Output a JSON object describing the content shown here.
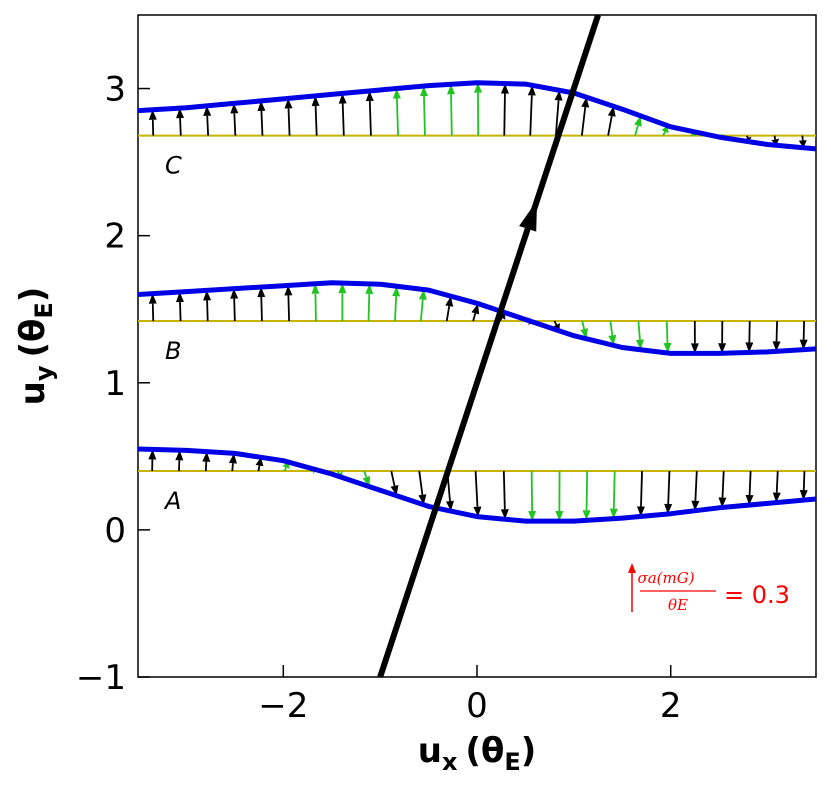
{
  "chart_data": {
    "type": "vector-field",
    "xlabel": {
      "main": "u",
      "sub": "x",
      "unit": "(θ",
      "unit_sub": "E",
      "close": ")"
    },
    "ylabel": {
      "main": "u",
      "sub": "y",
      "unit": "(θ",
      "unit_sub": "E",
      "close": ")"
    },
    "xlim": [
      -3.5,
      3.5
    ],
    "ylim": [
      -1,
      3.5
    ],
    "xticks": [
      {
        "value": -2,
        "label": "−2"
      },
      {
        "value": 0,
        "label": "0"
      },
      {
        "value": 2,
        "label": "2"
      }
    ],
    "yticks": [
      {
        "value": -1,
        "label": "−1"
      },
      {
        "value": 0,
        "label": "0"
      },
      {
        "value": 1,
        "label": "1"
      },
      {
        "value": 2,
        "label": "2"
      },
      {
        "value": 3,
        "label": "3"
      }
    ],
    "lens_trajectory": {
      "start": [
        -1.0,
        -1.0
      ],
      "end": [
        1.25,
        3.5
      ],
      "arrow_at": 0.72
    },
    "tracks": [
      {
        "label": "A",
        "baseline_y": 0.4,
        "curve": [
          [
            -3.5,
            0.55
          ],
          [
            -3.0,
            0.54
          ],
          [
            -2.5,
            0.52
          ],
          [
            -2.0,
            0.47
          ],
          [
            -1.5,
            0.38
          ],
          [
            -1.0,
            0.27
          ],
          [
            -0.5,
            0.16
          ],
          [
            0.0,
            0.09
          ],
          [
            0.5,
            0.06
          ],
          [
            1.0,
            0.06
          ],
          [
            1.5,
            0.08
          ],
          [
            2.0,
            0.11
          ],
          [
            2.5,
            0.15
          ],
          [
            3.0,
            0.18
          ],
          [
            3.5,
            0.21
          ]
        ]
      },
      {
        "label": "B",
        "baseline_y": 1.42,
        "curve": [
          [
            -3.5,
            1.6
          ],
          [
            -3.0,
            1.62
          ],
          [
            -2.5,
            1.64
          ],
          [
            -2.0,
            1.66
          ],
          [
            -1.5,
            1.68
          ],
          [
            -1.0,
            1.67
          ],
          [
            -0.5,
            1.63
          ],
          [
            0.0,
            1.54
          ],
          [
            0.5,
            1.43
          ],
          [
            1.0,
            1.32
          ],
          [
            1.5,
            1.24
          ],
          [
            2.0,
            1.2
          ],
          [
            2.5,
            1.2
          ],
          [
            3.0,
            1.21
          ],
          [
            3.5,
            1.23
          ]
        ]
      },
      {
        "label": "C",
        "baseline_y": 2.68,
        "curve": [
          [
            -3.5,
            2.85
          ],
          [
            -3.0,
            2.87
          ],
          [
            -2.5,
            2.9
          ],
          [
            -2.0,
            2.93
          ],
          [
            -1.5,
            2.96
          ],
          [
            -1.0,
            2.99
          ],
          [
            -0.5,
            3.02
          ],
          [
            0.0,
            3.04
          ],
          [
            0.5,
            3.03
          ],
          [
            1.0,
            2.97
          ],
          [
            1.5,
            2.86
          ],
          [
            2.0,
            2.74
          ],
          [
            2.5,
            2.67
          ],
          [
            3.0,
            2.62
          ],
          [
            3.5,
            2.59
          ]
        ]
      }
    ],
    "arrow_spacing": 0.28,
    "legend": {
      "numerator": "σa(mG)",
      "denominator": "θE",
      "equals": "= 0.3",
      "color": "#ff0000"
    },
    "colors": {
      "curve": "#0000e6",
      "baseline": "#c8b400",
      "arrow_green": "#22c322",
      "arrow_black": "#000000",
      "trajectory": "#000000"
    }
  }
}
